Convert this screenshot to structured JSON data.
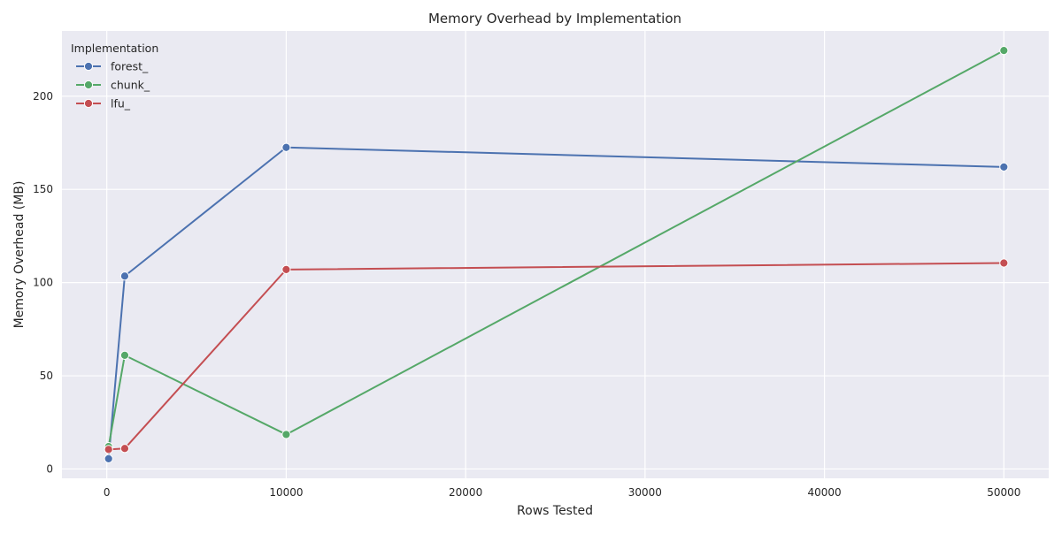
{
  "chart_data": {
    "type": "line",
    "title": "Memory Overhead by Implementation",
    "xlabel": "Rows Tested",
    "ylabel": "Memory Overhead (MB)",
    "xlim": [
      -2500,
      52500
    ],
    "ylim": [
      -5,
      235
    ],
    "x_ticks": [
      0,
      10000,
      20000,
      30000,
      40000,
      50000
    ],
    "y_ticks": [
      0,
      50,
      100,
      150,
      200
    ],
    "grid": true,
    "legend": {
      "title": "Implementation",
      "placement": "top-left"
    },
    "series": [
      {
        "name": "forest_",
        "color": "#4c72b0",
        "points": [
          {
            "x": 100,
            "y": 5.5
          },
          {
            "x": 1000,
            "y": 103.5
          },
          {
            "x": 10000,
            "y": 172.5
          },
          {
            "x": 50000,
            "y": 162
          }
        ]
      },
      {
        "name": "chunk_",
        "color": "#55a868",
        "points": [
          {
            "x": 100,
            "y": 12
          },
          {
            "x": 1000,
            "y": 61
          },
          {
            "x": 10000,
            "y": 18.5
          },
          {
            "x": 50000,
            "y": 224.5
          }
        ]
      },
      {
        "name": "lfu_",
        "color": "#c44e52",
        "points": [
          {
            "x": 100,
            "y": 10.5
          },
          {
            "x": 1000,
            "y": 11
          },
          {
            "x": 10000,
            "y": 107
          },
          {
            "x": 50000,
            "y": 110.5
          }
        ]
      }
    ]
  }
}
